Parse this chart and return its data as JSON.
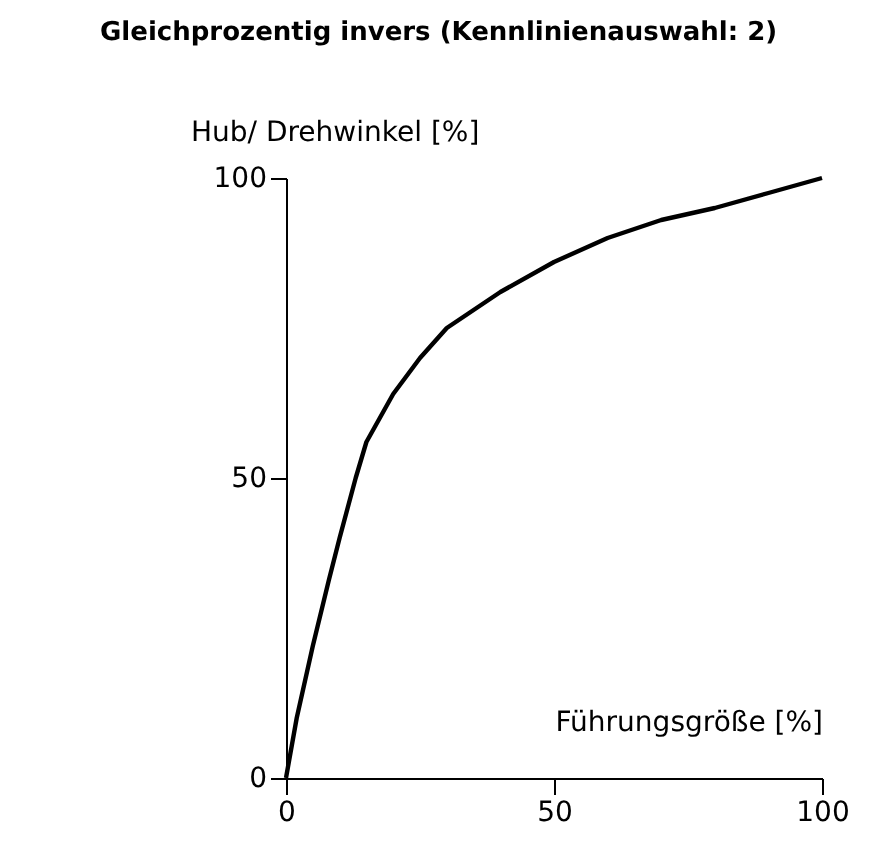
{
  "chart_data": {
    "type": "line",
    "title": "Gleichprozentig invers (Kennlinienauswahl: 2)",
    "xlabel": "Führungsgröße [%]",
    "ylabel": "Hub/ Drehwinkel [%]",
    "x": [
      0,
      2,
      5,
      8,
      10,
      13,
      15,
      20,
      25,
      30,
      35,
      40,
      50,
      60,
      70,
      80,
      90,
      100
    ],
    "series": [
      {
        "color": "#000000",
        "values": [
          0,
          10,
          22,
          33,
          40,
          50,
          56,
          64,
          70,
          75,
          78,
          81,
          86,
          90,
          93,
          95,
          97.5,
          100
        ]
      }
    ],
    "xlim": [
      0,
      100
    ],
    "ylim": [
      0,
      100
    ],
    "xticks": [
      0,
      50,
      100
    ],
    "yticks": [
      0,
      50,
      100
    ],
    "grid": false,
    "legend": false,
    "marker": "none",
    "line_style": "solid"
  }
}
